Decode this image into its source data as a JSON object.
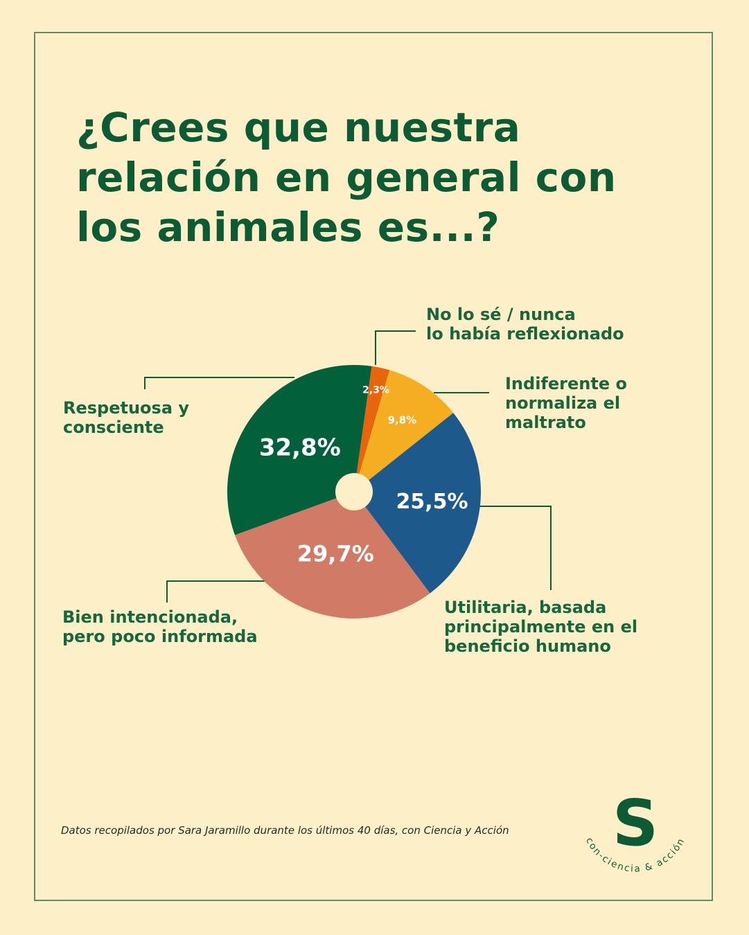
{
  "title_lines": [
    "¿Crees que nuestra",
    "relación en general con",
    "los animales es...?"
  ],
  "chart_data": {
    "type": "pie",
    "slices": [
      {
        "name": "No lo sé / nunca lo había reflexionado",
        "value": 2.3,
        "value_label": "2,3%",
        "label_lines": [
          "No lo sé / nunca",
          "lo había reflexionado"
        ],
        "color": "#e7650d"
      },
      {
        "name": "Indiferente o normaliza el maltrato",
        "value": 9.8,
        "value_label": "9,8%",
        "label_lines": [
          "Indiferente o",
          "normaliza el",
          "maltrato"
        ],
        "color": "#f5ad22"
      },
      {
        "name": "Utilitaria, basada principalmente en el beneficio humano",
        "value": 25.5,
        "value_label": "25,5%",
        "label_lines": [
          "Utilitaria, basada",
          "principalmente en el",
          "beneficio humano"
        ],
        "color": "#1d5a8b"
      },
      {
        "name": "Bien intencionada, pero poco informada",
        "value": 29.7,
        "value_label": "29,7%",
        "label_lines": [
          "Bien intencionada,",
          "pero poco informada"
        ],
        "color": "#d17a66"
      },
      {
        "name": "Respetuosa y consciente",
        "value": 32.8,
        "value_label": "32,8%",
        "label_lines": [
          "Respetuosa y",
          "consciente"
        ],
        "color": "#02603a"
      }
    ],
    "start_angle_deg": 8,
    "direction": "clockwise",
    "center_hole": true
  },
  "source_note": "Datos recopilados por Sara Jaramillo durante los últimos 40 días, con Ciencia y Acción",
  "logo": {
    "mark": "S",
    "text": "con-ciencia & acción",
    "color": "#0d5b35"
  },
  "colors": {
    "background": "#fdefc8",
    "accent": "#0d5b35",
    "frame": "#5f8a63"
  }
}
